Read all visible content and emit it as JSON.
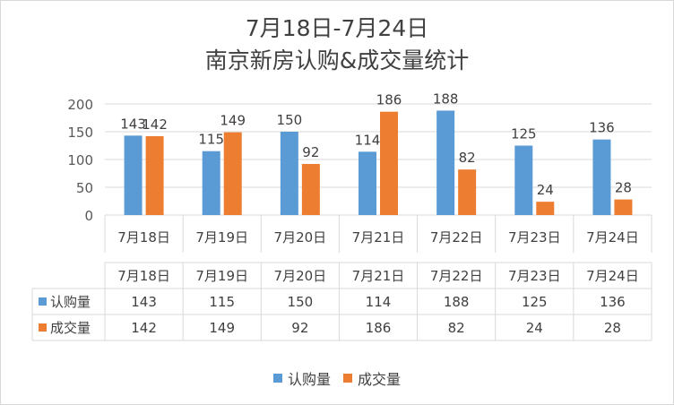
{
  "chart_data": {
    "type": "bar",
    "title_line1": "7月18日-7月24日",
    "title_line2": "南京新房认购&成交量统计",
    "categories": [
      "7月18日",
      "7月19日",
      "7月20日",
      "7月21日",
      "7月22日",
      "7月23日",
      "7月24日"
    ],
    "series": [
      {
        "name": "认购量",
        "values": [
          143,
          115,
          150,
          114,
          188,
          125,
          136
        ],
        "color": "#5b9bd5"
      },
      {
        "name": "成交量",
        "values": [
          142,
          149,
          92,
          186,
          82,
          24,
          28
        ],
        "color": "#ed7d31"
      }
    ],
    "ylim": [
      0,
      200
    ],
    "yticks": [
      0,
      50,
      100,
      150,
      200
    ],
    "grid": true,
    "legend_position": "bottom",
    "data_table": true
  }
}
